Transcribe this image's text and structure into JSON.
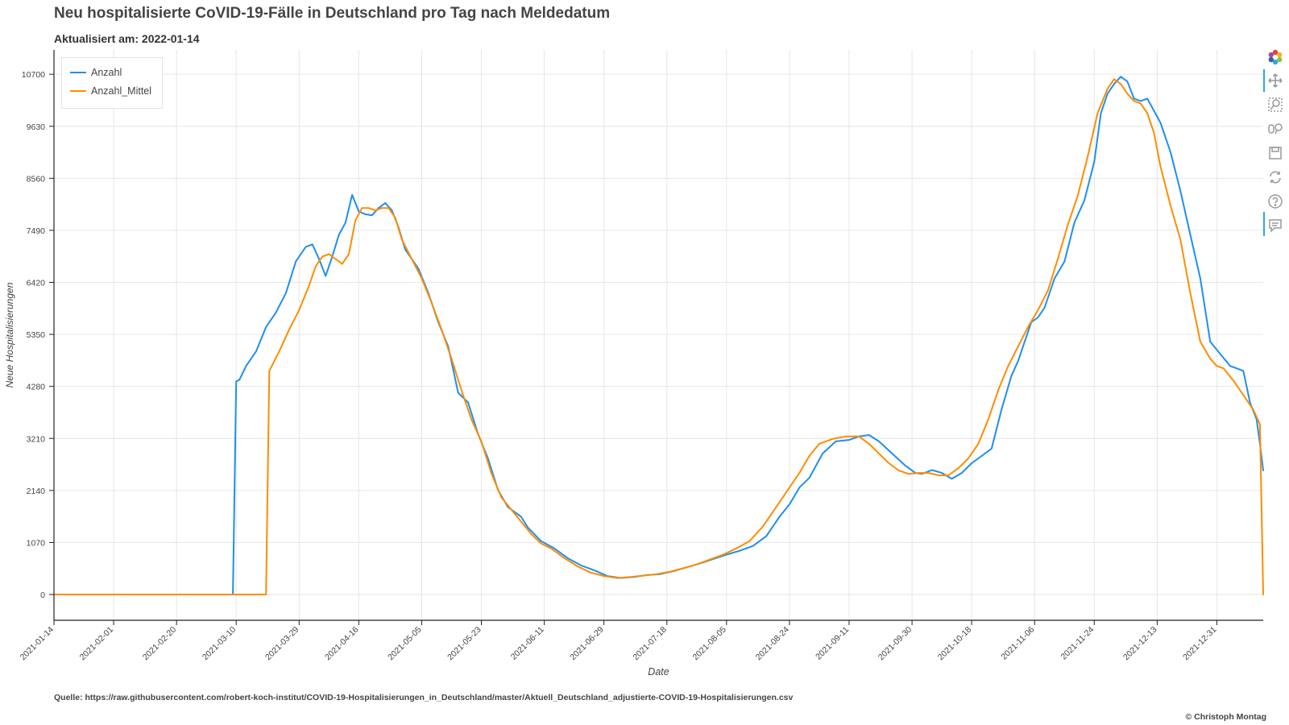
{
  "title": "Neu hospitalisierte CoVID-19-Fälle in Deutschland pro Tag nach Meldedatum",
  "subtitle": "Aktualisiert am: 2022-01-14",
  "source": "Quelle: https://raw.githubusercontent.com/robert-koch-institut/COVID-19-Hospitalisierungen_in_Deutschland/master/Aktuell_Deutschland_adjustierte-COVID-19-Hospitalisierungen.csv",
  "copyright": "© Christoph Montag",
  "colors": {
    "Anzahl": "#1f8ef1",
    "Anzahl_Mittel": "#ff8c00",
    "grid": "#e6e6e6",
    "axis": "#222222"
  },
  "toolbar": {
    "icons": [
      "bokeh-logo-icon",
      "pan-icon",
      "box-zoom-icon",
      "wheel-zoom-icon",
      "save-icon",
      "reset-icon",
      "help-icon",
      "hover-icon"
    ]
  },
  "chart_data": {
    "type": "line",
    "title": "Neu hospitalisierte CoVID-19-Fälle in Deutschland pro Tag nach Meldedatum",
    "subtitle": "Aktualisiert am: 2022-01-14",
    "xlabel": "Date",
    "ylabel": "Neue Hospitalisierungen",
    "xlim": [
      "2021-01-14",
      "2022-01-14"
    ],
    "ylim": [
      -530,
      11200
    ],
    "yticks": [
      0,
      1070,
      2140,
      3210,
      4280,
      5350,
      6420,
      7490,
      8560,
      9630,
      10700
    ],
    "xticks": [
      "2021-01-14",
      "2021-02-01",
      "2021-02-20",
      "2021-03-10",
      "2021-03-29",
      "2021-04-16",
      "2021-05-05",
      "2021-05-23",
      "2021-06-11",
      "2021-06-29",
      "2021-07-18",
      "2021-08-05",
      "2021-08-24",
      "2021-09-11",
      "2021-09-30",
      "2021-10-18",
      "2021-11-06",
      "2021-11-24",
      "2021-12-13",
      "2021-12-31"
    ],
    "grid": true,
    "legend": "top-left",
    "series": [
      {
        "name": "Anzahl",
        "x": [
          "2021-01-14",
          "2021-03-09",
          "2021-03-10",
          "2021-03-11",
          "2021-03-13",
          "2021-03-16",
          "2021-03-19",
          "2021-03-22",
          "2021-03-25",
          "2021-03-28",
          "2021-03-31",
          "2021-04-02",
          "2021-04-04",
          "2021-04-06",
          "2021-04-08",
          "2021-04-10",
          "2021-04-12",
          "2021-04-14",
          "2021-04-16",
          "2021-04-18",
          "2021-04-20",
          "2021-04-22",
          "2021-04-24",
          "2021-04-26",
          "2021-04-28",
          "2021-04-30",
          "2021-05-02",
          "2021-05-04",
          "2021-05-07",
          "2021-05-10",
          "2021-05-13",
          "2021-05-16",
          "2021-05-19",
          "2021-05-22",
          "2021-05-25",
          "2021-05-28",
          "2021-05-31",
          "2021-06-02",
          "2021-06-04",
          "2021-06-06",
          "2021-06-10",
          "2021-06-14",
          "2021-06-18",
          "2021-06-22",
          "2021-06-26",
          "2021-06-30",
          "2021-07-04",
          "2021-07-08",
          "2021-07-12",
          "2021-07-16",
          "2021-07-20",
          "2021-07-24",
          "2021-07-28",
          "2021-08-01",
          "2021-08-05",
          "2021-08-09",
          "2021-08-13",
          "2021-08-17",
          "2021-08-21",
          "2021-08-24",
          "2021-08-27",
          "2021-08-30",
          "2021-09-03",
          "2021-09-07",
          "2021-09-11",
          "2021-09-14",
          "2021-09-17",
          "2021-09-20",
          "2021-09-24",
          "2021-09-28",
          "2021-10-01",
          "2021-10-03",
          "2021-10-06",
          "2021-10-09",
          "2021-10-12",
          "2021-10-15",
          "2021-10-18",
          "2021-10-21",
          "2021-10-24",
          "2021-10-27",
          "2021-10-30",
          "2021-11-01",
          "2021-11-03",
          "2021-11-05",
          "2021-11-07",
          "2021-11-09",
          "2021-11-12",
          "2021-11-15",
          "2021-11-18",
          "2021-11-21",
          "2021-11-24",
          "2021-11-26",
          "2021-11-28",
          "2021-11-30",
          "2021-12-02",
          "2021-12-04",
          "2021-12-06",
          "2021-12-08",
          "2021-12-10",
          "2021-12-12",
          "2021-12-14",
          "2021-12-17",
          "2021-12-20",
          "2021-12-23",
          "2021-12-26",
          "2021-12-29",
          "2022-01-01",
          "2022-01-04",
          "2022-01-06",
          "2022-01-08",
          "2022-01-10",
          "2022-01-12",
          "2022-01-13",
          "2022-01-14"
        ],
        "y": [
          0,
          0,
          4380,
          4420,
          4700,
          5000,
          5500,
          5800,
          6200,
          6850,
          7150,
          7200,
          6900,
          6550,
          6950,
          7400,
          7650,
          8220,
          7880,
          7820,
          7800,
          7950,
          8050,
          7900,
          7550,
          7100,
          6900,
          6700,
          6200,
          5600,
          5100,
          4150,
          3950,
          3300,
          2800,
          2150,
          1800,
          1700,
          1600,
          1380,
          1100,
          950,
          750,
          600,
          500,
          380,
          340,
          360,
          400,
          420,
          480,
          560,
          640,
          730,
          820,
          900,
          1000,
          1200,
          1600,
          1850,
          2200,
          2400,
          2900,
          3150,
          3180,
          3250,
          3280,
          3150,
          2900,
          2650,
          2500,
          2480,
          2560,
          2500,
          2380,
          2500,
          2700,
          2850,
          3000,
          3800,
          4500,
          4800,
          5200,
          5600,
          5700,
          5900,
          6500,
          6850,
          7650,
          8100,
          8900,
          9900,
          10300,
          10500,
          10650,
          10550,
          10200,
          10150,
          10200,
          9950,
          9700,
          9100,
          8300,
          7400,
          6500,
          5200,
          4950,
          4700,
          4650,
          4600,
          3950,
          3600,
          3100,
          2550
        ]
      },
      {
        "name": "Anzahl_Mittel",
        "x": [
          "2021-01-14",
          "2021-03-19",
          "2021-03-20",
          "2021-03-23",
          "2021-03-26",
          "2021-03-29",
          "2021-04-01",
          "2021-04-03",
          "2021-04-05",
          "2021-04-07",
          "2021-04-09",
          "2021-04-11",
          "2021-04-13",
          "2021-04-15",
          "2021-04-17",
          "2021-04-19",
          "2021-04-21",
          "2021-04-23",
          "2021-04-25",
          "2021-04-27",
          "2021-04-29",
          "2021-05-02",
          "2021-05-05",
          "2021-05-08",
          "2021-05-11",
          "2021-05-14",
          "2021-05-17",
          "2021-05-20",
          "2021-05-23",
          "2021-05-26",
          "2021-05-29",
          "2021-06-01",
          "2021-06-04",
          "2021-06-07",
          "2021-06-10",
          "2021-06-13",
          "2021-06-17",
          "2021-06-21",
          "2021-06-25",
          "2021-06-29",
          "2021-07-03",
          "2021-07-07",
          "2021-07-11",
          "2021-07-15",
          "2021-07-19",
          "2021-07-23",
          "2021-07-27",
          "2021-07-31",
          "2021-08-04",
          "2021-08-08",
          "2021-08-12",
          "2021-08-16",
          "2021-08-20",
          "2021-08-24",
          "2021-08-27",
          "2021-08-30",
          "2021-09-02",
          "2021-09-06",
          "2021-09-10",
          "2021-09-14",
          "2021-09-17",
          "2021-09-20",
          "2021-09-23",
          "2021-09-26",
          "2021-09-29",
          "2021-10-02",
          "2021-10-05",
          "2021-10-08",
          "2021-10-11",
          "2021-10-14",
          "2021-10-17",
          "2021-10-20",
          "2021-10-23",
          "2021-10-26",
          "2021-10-29",
          "2021-11-01",
          "2021-11-04",
          "2021-11-07",
          "2021-11-10",
          "2021-11-13",
          "2021-11-16",
          "2021-11-19",
          "2021-11-22",
          "2021-11-25",
          "2021-11-28",
          "2021-11-30",
          "2021-12-02",
          "2021-12-04",
          "2021-12-06",
          "2021-12-08",
          "2021-12-10",
          "2021-12-12",
          "2021-12-14",
          "2021-12-17",
          "2021-12-20",
          "2021-12-23",
          "2021-12-26",
          "2021-12-29",
          "2021-12-31",
          "2022-01-02",
          "2022-01-05",
          "2022-01-08",
          "2022-01-11",
          "2022-01-13",
          "2022-01-14"
        ],
        "y": [
          0,
          0,
          4600,
          5000,
          5450,
          5850,
          6350,
          6750,
          6950,
          7000,
          6900,
          6800,
          7000,
          7700,
          7950,
          7950,
          7900,
          7950,
          7950,
          7750,
          7300,
          6900,
          6500,
          6000,
          5450,
          4850,
          4200,
          3600,
          3150,
          2500,
          2000,
          1750,
          1500,
          1250,
          1050,
          950,
          750,
          580,
          450,
          380,
          340,
          360,
          390,
          420,
          470,
          540,
          620,
          720,
          820,
          950,
          1100,
          1400,
          1800,
          2200,
          2500,
          2850,
          3100,
          3200,
          3250,
          3250,
          3100,
          2900,
          2700,
          2550,
          2480,
          2500,
          2500,
          2450,
          2450,
          2600,
          2800,
          3100,
          3600,
          4200,
          4700,
          5100,
          5500,
          5850,
          6250,
          6900,
          7600,
          8200,
          9000,
          9900,
          10400,
          10600,
          10500,
          10300,
          10150,
          10100,
          9900,
          9500,
          8800,
          8000,
          7300,
          6200,
          5200,
          4850,
          4700,
          4650,
          4400,
          4100,
          3800,
          3500,
          0
        ]
      }
    ]
  }
}
